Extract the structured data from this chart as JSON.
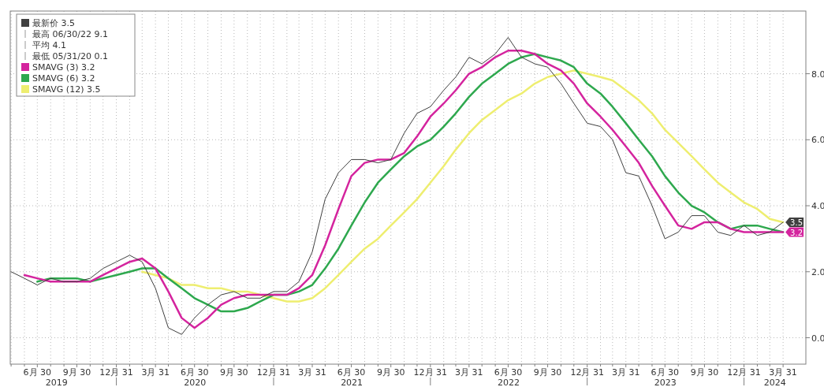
{
  "chart_data": {
    "type": "line",
    "x": [
      "2019-04-30",
      "2019-05-31",
      "2019-06-30",
      "2019-07-31",
      "2019-08-31",
      "2019-09-30",
      "2019-10-31",
      "2019-11-30",
      "2019-12-31",
      "2020-01-31",
      "2020-02-29",
      "2020-03-31",
      "2020-04-30",
      "2020-05-31",
      "2020-06-30",
      "2020-07-31",
      "2020-08-31",
      "2020-09-30",
      "2020-10-31",
      "2020-11-30",
      "2020-12-31",
      "2021-01-31",
      "2021-02-28",
      "2021-03-31",
      "2021-04-30",
      "2021-05-31",
      "2021-06-30",
      "2021-07-31",
      "2021-08-31",
      "2021-09-30",
      "2021-10-31",
      "2021-11-30",
      "2021-12-31",
      "2022-01-31",
      "2022-02-28",
      "2022-03-31",
      "2022-04-30",
      "2022-05-31",
      "2022-06-30",
      "2022-07-31",
      "2022-08-31",
      "2022-09-30",
      "2022-10-31",
      "2022-11-30",
      "2022-12-31",
      "2023-01-31",
      "2023-02-28",
      "2023-03-31",
      "2023-04-30",
      "2023-05-31",
      "2023-06-30",
      "2023-07-31",
      "2023-08-31",
      "2023-09-30",
      "2023-10-31",
      "2023-11-30",
      "2023-12-31",
      "2024-01-31",
      "2024-02-29",
      "2024-03-31"
    ],
    "series": [
      {
        "name": "最新价 3.5",
        "color": "#404040",
        "values": [
          2.0,
          1.8,
          1.6,
          1.8,
          1.7,
          1.7,
          1.8,
          2.1,
          2.3,
          2.5,
          2.3,
          1.5,
          0.3,
          0.1,
          0.6,
          1.0,
          1.3,
          1.4,
          1.2,
          1.2,
          1.4,
          1.4,
          1.7,
          2.6,
          4.2,
          5.0,
          5.4,
          5.4,
          5.3,
          5.4,
          6.2,
          6.8,
          7.0,
          7.5,
          7.9,
          8.5,
          8.3,
          8.6,
          9.1,
          8.5,
          8.3,
          8.2,
          7.7,
          7.1,
          6.5,
          6.4,
          6.0,
          5.0,
          4.9,
          4.0,
          3.0,
          3.2,
          3.7,
          3.7,
          3.2,
          3.1,
          3.4,
          3.1,
          3.2,
          3.5
        ],
        "value_labels": [
          null,
          null,
          null,
          null,
          null,
          null,
          null,
          null,
          null,
          null,
          null,
          null,
          null,
          null,
          null,
          null,
          null,
          null,
          null,
          null,
          null,
          null,
          null,
          null,
          null,
          null,
          null,
          null,
          null,
          null,
          null,
          null,
          null,
          null,
          null,
          null,
          null,
          null,
          null,
          null,
          null,
          null,
          null,
          null,
          null,
          null,
          null,
          null,
          null,
          null,
          null,
          null,
          null,
          null,
          null,
          null,
          null,
          null,
          null,
          "3.5"
        ]
      },
      {
        "name": "SMAVG (3) 3.2",
        "color": "#d4249e",
        "values": [
          null,
          1.9,
          1.8,
          1.7,
          1.7,
          1.7,
          1.7,
          1.9,
          2.1,
          2.3,
          2.4,
          2.1,
          1.4,
          0.6,
          0.3,
          0.6,
          1.0,
          1.2,
          1.3,
          1.3,
          1.3,
          1.3,
          1.5,
          1.9,
          2.8,
          3.9,
          4.9,
          5.3,
          5.4,
          5.4,
          5.6,
          6.1,
          6.7,
          7.1,
          7.5,
          8.0,
          8.2,
          8.5,
          8.7,
          8.7,
          8.6,
          8.3,
          8.1,
          7.7,
          7.1,
          6.7,
          6.3,
          5.8,
          5.3,
          4.6,
          4.0,
          3.4,
          3.3,
          3.5,
          3.5,
          3.3,
          3.2,
          3.2,
          3.2,
          3.2
        ],
        "value_labels": [
          null,
          null,
          null,
          null,
          null,
          null,
          null,
          null,
          null,
          null,
          null,
          null,
          null,
          null,
          null,
          null,
          null,
          null,
          null,
          null,
          null,
          null,
          null,
          null,
          null,
          null,
          null,
          null,
          null,
          null,
          null,
          null,
          null,
          null,
          null,
          null,
          null,
          null,
          null,
          null,
          null,
          null,
          null,
          null,
          null,
          null,
          null,
          null,
          null,
          null,
          null,
          null,
          null,
          null,
          null,
          null,
          null,
          null,
          null,
          "3.2"
        ]
      },
      {
        "name": "SMAVG (6) 3.2",
        "color": "#2ea84e",
        "values": [
          null,
          null,
          1.7,
          1.8,
          1.8,
          1.8,
          1.7,
          1.8,
          1.9,
          2.0,
          2.1,
          2.1,
          1.8,
          1.5,
          1.2,
          1.0,
          0.8,
          0.8,
          0.9,
          1.1,
          1.3,
          1.3,
          1.4,
          1.6,
          2.1,
          2.7,
          3.4,
          4.1,
          4.7,
          5.1,
          5.5,
          5.8,
          6.0,
          6.4,
          6.8,
          7.3,
          7.7,
          8.0,
          8.3,
          8.5,
          8.6,
          8.5,
          8.4,
          8.2,
          7.7,
          7.4,
          7.0,
          6.5,
          6.0,
          5.5,
          4.9,
          4.4,
          4.0,
          3.8,
          3.5,
          3.3,
          3.4,
          3.4,
          3.3,
          3.2
        ]
      },
      {
        "name": "SMAVG (12) 3.5",
        "color": "#eeee70",
        "values": [
          null,
          null,
          null,
          null,
          null,
          null,
          null,
          null,
          null,
          null,
          2.0,
          1.9,
          1.8,
          1.6,
          1.6,
          1.5,
          1.5,
          1.4,
          1.4,
          1.3,
          1.2,
          1.1,
          1.1,
          1.2,
          1.5,
          1.9,
          2.3,
          2.7,
          3.0,
          3.4,
          3.8,
          4.2,
          4.7,
          5.2,
          5.7,
          6.2,
          6.6,
          6.9,
          7.2,
          7.4,
          7.7,
          7.9,
          8.0,
          8.1,
          8.0,
          7.9,
          7.8,
          7.5,
          7.2,
          6.8,
          6.3,
          5.9,
          5.5,
          5.1,
          4.7,
          4.4,
          4.1,
          3.9,
          3.6,
          3.5
        ]
      }
    ],
    "annotations": [
      "最高 06/30/22 9.1",
      "平均 4.1",
      "最低 05/31/20 0.1"
    ],
    "xlim": [
      "2019-04-28",
      "2024-05-23"
    ],
    "xticks": [
      {
        "value": "2019-04-30",
        "label": null
      },
      {
        "value": "2019-05-31",
        "label": null
      },
      {
        "value": "2019-06-30",
        "label": "6月 30"
      },
      {
        "value": "2019-07-31",
        "label": null
      },
      {
        "value": "2019-08-31",
        "label": null
      },
      {
        "value": "2019-09-30",
        "label": "9月 30"
      },
      {
        "value": "2019-10-31",
        "label": null
      },
      {
        "value": "2019-11-30",
        "label": null
      },
      {
        "value": "2019-12-31",
        "label": "12月 31"
      },
      {
        "value": "2020-01-31",
        "label": null
      },
      {
        "value": "2020-02-29",
        "label": null
      },
      {
        "value": "2020-03-31",
        "label": "3月 31"
      },
      {
        "value": "2020-04-30",
        "label": null
      },
      {
        "value": "2020-05-31",
        "label": null
      },
      {
        "value": "2020-06-30",
        "label": "6月 30"
      },
      {
        "value": "2020-07-31",
        "label": null
      },
      {
        "value": "2020-08-31",
        "label": null
      },
      {
        "value": "2020-09-30",
        "label": "9月 30"
      },
      {
        "value": "2020-10-31",
        "label": null
      },
      {
        "value": "2020-11-30",
        "label": null
      },
      {
        "value": "2020-12-31",
        "label": "12月 31"
      },
      {
        "value": "2021-01-31",
        "label": null
      },
      {
        "value": "2021-02-28",
        "label": null
      },
      {
        "value": "2021-03-31",
        "label": "3月 31"
      },
      {
        "value": "2021-04-30",
        "label": null
      },
      {
        "value": "2021-05-31",
        "label": null
      },
      {
        "value": "2021-06-30",
        "label": "6月 30"
      },
      {
        "value": "2021-07-31",
        "label": null
      },
      {
        "value": "2021-08-31",
        "label": null
      },
      {
        "value": "2021-09-30",
        "label": "9月 30"
      },
      {
        "value": "2021-10-31",
        "label": null
      },
      {
        "value": "2021-11-30",
        "label": null
      },
      {
        "value": "2021-12-31",
        "label": "12月 31"
      },
      {
        "value": "2022-01-31",
        "label": null
      },
      {
        "value": "2022-02-28",
        "label": null
      },
      {
        "value": "2022-03-31",
        "label": "3月 31"
      },
      {
        "value": "2022-04-30",
        "label": null
      },
      {
        "value": "2022-05-31",
        "label": null
      },
      {
        "value": "2022-06-30",
        "label": "6月 30"
      },
      {
        "value": "2022-07-31",
        "label": null
      },
      {
        "value": "2022-08-31",
        "label": null
      },
      {
        "value": "2022-09-30",
        "label": "9月 30"
      },
      {
        "value": "2022-10-31",
        "label": null
      },
      {
        "value": "2022-11-30",
        "label": null
      },
      {
        "value": "2022-12-31",
        "label": "12月 31"
      },
      {
        "value": "2023-01-31",
        "label": null
      },
      {
        "value": "2023-02-28",
        "label": null
      },
      {
        "value": "2023-03-31",
        "label": "3月 31"
      },
      {
        "value": "2023-04-30",
        "label": null
      },
      {
        "value": "2023-05-31",
        "label": null
      },
      {
        "value": "2023-06-30",
        "label": "6月 30"
      },
      {
        "value": "2023-07-31",
        "label": null
      },
      {
        "value": "2023-08-31",
        "label": null
      },
      {
        "value": "2023-09-30",
        "label": "9月 30"
      },
      {
        "value": "2023-10-31",
        "label": null
      },
      {
        "value": "2023-11-30",
        "label": null
      },
      {
        "value": "2023-12-31",
        "label": "12月 31"
      },
      {
        "value": "2024-01-31",
        "label": null
      },
      {
        "value": "2024-02-29",
        "label": null
      },
      {
        "value": "2024-03-31",
        "label": "3月 31"
      }
    ],
    "x2lim": [
      "2019-04-28",
      "2024-05-23"
    ],
    "x2ticks": [
      {
        "value": "2019-08-14",
        "label": "2019"
      },
      {
        "value": "2020-07-01",
        "label": "2020"
      },
      {
        "value": "2021-07-01",
        "label": "2021"
      },
      {
        "value": "2022-07-01",
        "label": "2022"
      },
      {
        "value": "2023-07-01",
        "label": "2023"
      },
      {
        "value": "2024-03-12",
        "label": "2024"
      }
    ],
    "ylim": [
      -0.8,
      9.9
    ],
    "yticks": [
      {
        "value": 0,
        "label": "0.0"
      },
      {
        "value": 2,
        "label": "2.0"
      },
      {
        "value": 4,
        "label": "4.0"
      },
      {
        "value": 6,
        "label": "6.0"
      },
      {
        "value": 8,
        "label": "8.0"
      }
    ],
    "grid": true,
    "legend": "top left",
    "line_style": "solid"
  }
}
